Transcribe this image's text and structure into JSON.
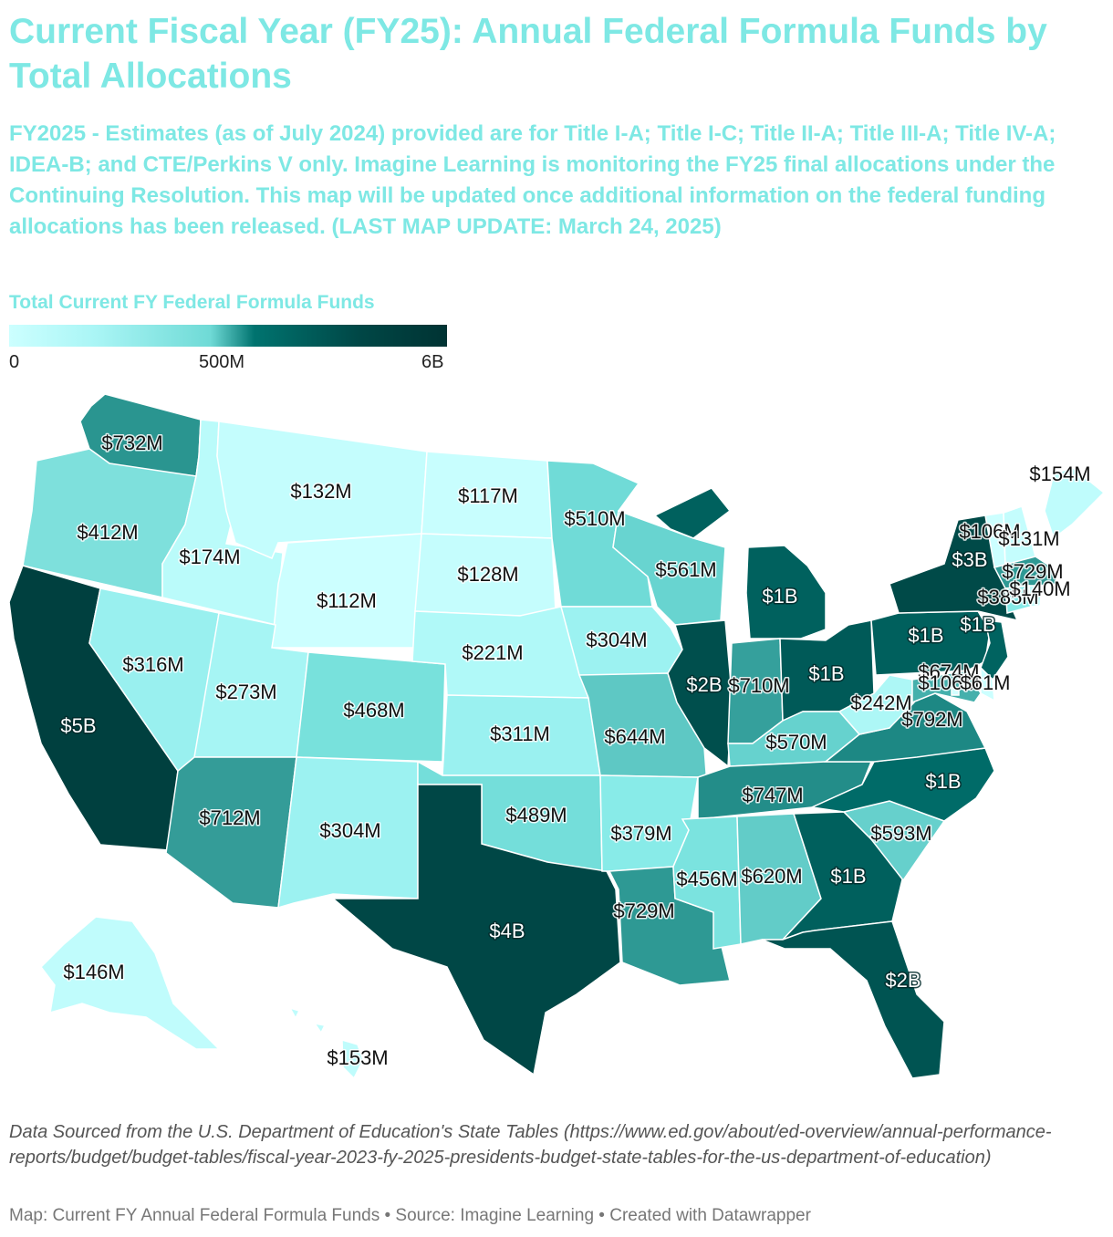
{
  "title": "Current Fiscal Year (FY25): Annual Federal Formula Funds by Total Allocations",
  "subtitle": "FY2025 - Estimates (as of July 2024) provided are for Title I-A; Title I-C; Title II-A; Title III-A; Title IV-A; IDEA-B; and CTE/Perkins V only. Imagine Learning is monitoring the FY25 final allocations under the Continuing Resolution. This map will be updated once additional information on the federal funding allocations has been released. (LAST MAP UPDATE: March 24, 2025)",
  "legend": {
    "title": "Total Current FY Federal Formula Funds",
    "ticks": [
      "0",
      "500M",
      "6B"
    ],
    "colors": [
      "#ccffff",
      "#a9f5f5",
      "#6fdad6",
      "#00736f",
      "#004746",
      "#003333"
    ]
  },
  "states": [
    {
      "id": "WA",
      "label": "$732M",
      "color": "#2a9590"
    },
    {
      "id": "OR",
      "label": "$412M",
      "color": "#7ee0dc"
    },
    {
      "id": "CA",
      "label": "$5B",
      "color": "#00403f"
    },
    {
      "id": "NV",
      "label": "$316M",
      "color": "#99f0ef"
    },
    {
      "id": "ID",
      "label": "$174M",
      "color": "#bafbfa"
    },
    {
      "id": "MT",
      "label": "$132M",
      "color": "#c4fdfd"
    },
    {
      "id": "WY",
      "label": "$112M",
      "color": "#ccffff"
    },
    {
      "id": "UT",
      "label": "$273M",
      "color": "#a6f5f4"
    },
    {
      "id": "AZ",
      "label": "$712M",
      "color": "#349c98"
    },
    {
      "id": "CO",
      "label": "$468M",
      "color": "#78e1dc"
    },
    {
      "id": "NM",
      "label": "$304M",
      "color": "#9cf2f1"
    },
    {
      "id": "ND",
      "label": "$117M",
      "color": "#c8fefe"
    },
    {
      "id": "SD",
      "label": "$128M",
      "color": "#c5fdfd"
    },
    {
      "id": "NE",
      "label": "$221M",
      "color": "#b0f9f8"
    },
    {
      "id": "KS",
      "label": "$311M",
      "color": "#9af1f0"
    },
    {
      "id": "OK",
      "label": "$489M",
      "color": "#74deda"
    },
    {
      "id": "TX",
      "label": "$4B",
      "color": "#004746"
    },
    {
      "id": "MN",
      "label": "$510M",
      "color": "#70dbd7"
    },
    {
      "id": "IA",
      "label": "$304M",
      "color": "#9cf2f1"
    },
    {
      "id": "MO",
      "label": "$644M",
      "color": "#5ec8c4"
    },
    {
      "id": "AR",
      "label": "$379M",
      "color": "#88ebe8"
    },
    {
      "id": "LA",
      "label": "$729M",
      "color": "#2e9994"
    },
    {
      "id": "WI",
      "label": "$561M",
      "color": "#68d4d0"
    },
    {
      "id": "IL",
      "label": "$2B",
      "color": "#004f4d"
    },
    {
      "id": "MI",
      "label": "$1B",
      "color": "#00615e"
    },
    {
      "id": "IN",
      "label": "$710M",
      "color": "#35a09c"
    },
    {
      "id": "OH",
      "label": "$1B",
      "color": "#005a58"
    },
    {
      "id": "KY",
      "label": "$570M",
      "color": "#66d2ce"
    },
    {
      "id": "TN",
      "label": "$747M",
      "color": "#238d89"
    },
    {
      "id": "MS",
      "label": "$456M",
      "color": "#7be3df"
    },
    {
      "id": "AL",
      "label": "$620M",
      "color": "#62ccc8"
    },
    {
      "id": "GA",
      "label": "$1B",
      "color": "#00605d"
    },
    {
      "id": "FL",
      "label": "$2B",
      "color": "#005452"
    },
    {
      "id": "SC",
      "label": "$593M",
      "color": "#66d0cc"
    },
    {
      "id": "NC",
      "label": "$1B",
      "color": "#006b68"
    },
    {
      "id": "VA",
      "label": "$792M",
      "color": "#1d8884"
    },
    {
      "id": "WV",
      "label": "$242M",
      "color": "#adf7f6"
    },
    {
      "id": "PA",
      "label": "$1B",
      "color": "#00605d"
    },
    {
      "id": "NY",
      "label": "$3B",
      "color": "#004a48"
    },
    {
      "id": "ME",
      "label": "$154M",
      "color": "#bffcfc"
    },
    {
      "id": "VT",
      "label": "$106M",
      "color": "#ccffff"
    },
    {
      "id": "NH",
      "label": "$131M",
      "color": "#c4fdfd"
    },
    {
      "id": "MA",
      "label": "$729M",
      "color": "#2e9994"
    },
    {
      "id": "CT",
      "label": "$385M",
      "color": "#86eae7"
    },
    {
      "id": "RI",
      "label": "$140M",
      "color": "#c2fcfc"
    },
    {
      "id": "NJ",
      "label": "$1B",
      "color": "#006360"
    },
    {
      "id": "MD",
      "label": "$674M",
      "color": "#45b0ac"
    },
    {
      "id": "DE",
      "label": "$106M",
      "color": "#ccffff"
    },
    {
      "id": "DC",
      "label": "$61M",
      "color": "#d2ffff"
    },
    {
      "id": "AK",
      "label": "$146M",
      "color": "#c0fcfc"
    },
    {
      "id": "HI",
      "label": "$153M",
      "color": "#bffcfc"
    }
  ],
  "note": "Data Sourced from the U.S. Department of Education's State Tables (https://www.ed.gov/about/ed-overview/annual-performance-reports/budget/budget-tables/fiscal-year-2023-fy-2025-presidents-budget-state-tables-for-the-us-department-of-education)",
  "credit": "Map: Current FY Annual Federal Formula Funds  • Source: Imagine Learning • Created with Datawrapper"
}
